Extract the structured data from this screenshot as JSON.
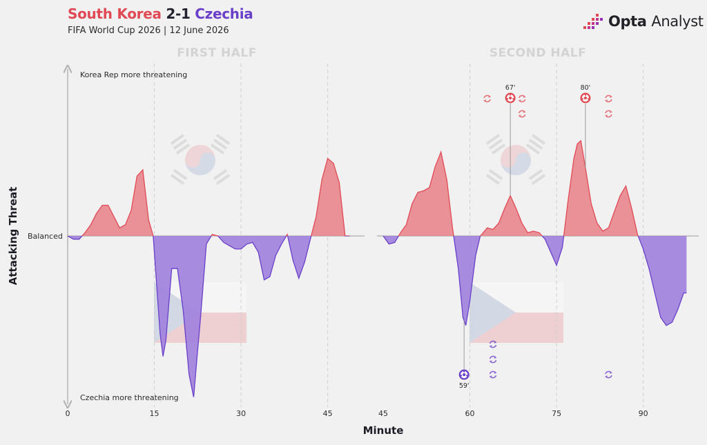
{
  "header": {
    "home_team": "South Korea",
    "score": "2-1",
    "away_team": "Czechia",
    "subtitle": "FIFA World Cup 2026 | 12 June 2026",
    "brand_bold": "Opta",
    "brand_light": "Analyst"
  },
  "colors": {
    "home": "#e04a55",
    "home_fill": "#e8868d",
    "away": "#6a3fc9",
    "away_fill": "#9f7fdd"
  },
  "chart_data": {
    "type": "area",
    "xlabel": "Minute",
    "ylabel": "Attacking Threat",
    "baseline_label": "Balanced",
    "top_label": "Korea Rep more threatening",
    "bottom_label": "Czechia more threatening",
    "ylim": [
      -1,
      1
    ],
    "grid": "vertical dashed at 15-minute marks",
    "panels": [
      {
        "label": "FIRST HALF",
        "xlim": [
          0,
          50
        ],
        "ticks": [
          "0",
          "15",
          "30",
          "45"
        ],
        "tick_values": [
          0,
          15,
          30,
          45
        ],
        "series": {
          "x": [
            0,
            1,
            2,
            3,
            4,
            5,
            6,
            7,
            8,
            9,
            10,
            11,
            12,
            13,
            14,
            14.8,
            15.2,
            16,
            16.5,
            17,
            18,
            19,
            20,
            21,
            21.8,
            22.5,
            23,
            24,
            25,
            26,
            27,
            28,
            29,
            30,
            31,
            32,
            33,
            34,
            35,
            36,
            37,
            38,
            39,
            40,
            41,
            42,
            43,
            44,
            45,
            46,
            47,
            48,
            48.8
          ],
          "y": [
            0,
            -0.02,
            -0.02,
            0.02,
            0.07,
            0.14,
            0.19,
            0.19,
            0.12,
            0.05,
            0.07,
            0.16,
            0.37,
            0.41,
            0.1,
            0,
            -0.2,
            -0.6,
            -0.74,
            -0.64,
            -0.2,
            -0.2,
            -0.46,
            -0.85,
            -0.99,
            -0.7,
            -0.5,
            -0.05,
            0.01,
            0,
            -0.04,
            -0.06,
            -0.08,
            -0.08,
            -0.05,
            -0.04,
            -0.1,
            -0.27,
            -0.25,
            -0.12,
            -0.05,
            0.01,
            -0.15,
            -0.26,
            -0.16,
            -0.02,
            0.12,
            0.35,
            0.48,
            0.45,
            0.33,
            0,
            0
          ]
        }
      },
      {
        "label": "SECOND HALF",
        "xlim": [
          45,
          100
        ],
        "ticks": [
          "45",
          "60",
          "75",
          "90"
        ],
        "tick_values": [
          45,
          60,
          75,
          90
        ],
        "series": {
          "x": [
            45,
            46,
            47,
            48,
            49,
            50,
            51,
            52,
            53,
            54,
            55,
            56,
            57,
            58,
            58.8,
            59.3,
            60,
            61,
            61.8,
            62.3,
            63,
            64,
            65,
            66,
            67,
            68,
            69,
            70,
            71,
            72,
            73,
            74,
            75,
            76,
            77,
            78,
            78.6,
            79.2,
            80,
            81,
            82,
            83,
            84,
            85,
            86,
            87,
            88,
            89,
            90,
            91,
            92,
            93,
            94,
            95,
            96,
            97,
            97.5
          ],
          "y": [
            0,
            -0.05,
            -0.04,
            0.02,
            0.07,
            0.2,
            0.27,
            0.28,
            0.3,
            0.43,
            0.52,
            0.35,
            0.05,
            -0.2,
            -0.5,
            -0.55,
            -0.4,
            -0.12,
            0,
            0.02,
            0.05,
            0.04,
            0.08,
            0.17,
            0.25,
            0.17,
            0.08,
            0.02,
            0.03,
            0.02,
            -0.02,
            -0.1,
            -0.18,
            -0.07,
            0.22,
            0.48,
            0.57,
            0.59,
            0.42,
            0.2,
            0.08,
            0.03,
            0.05,
            0.15,
            0.25,
            0.31,
            0.17,
            0.01,
            -0.08,
            -0.2,
            -0.35,
            -0.5,
            -0.55,
            -0.53,
            -0.45,
            -0.35,
            -0.35
          ]
        }
      }
    ],
    "goals": [
      {
        "minute": 59,
        "label": "59'",
        "team": "away"
      },
      {
        "minute": 67,
        "label": "67'",
        "team": "home"
      },
      {
        "minute": 80,
        "label": "80'",
        "team": "home"
      }
    ],
    "substitutions": [
      {
        "minute": 63,
        "team": "home"
      },
      {
        "minute": 67,
        "team": "home"
      },
      {
        "minute": 67,
        "team": "home"
      },
      {
        "minute": 84,
        "team": "home"
      },
      {
        "minute": 84,
        "team": "home"
      },
      {
        "minute": 64,
        "team": "away"
      },
      {
        "minute": 64,
        "team": "away"
      },
      {
        "minute": 64,
        "team": "away"
      },
      {
        "minute": 84,
        "team": "away"
      }
    ]
  }
}
